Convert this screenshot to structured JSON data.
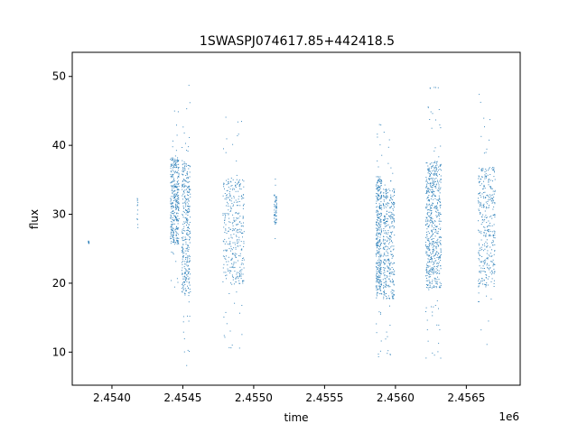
{
  "chart_data": {
    "type": "scatter",
    "title": "1SWASPJ074617.85+442418.5",
    "xlabel": "time",
    "ylabel": "flux",
    "x_offset_label": "1e6",
    "xlim": [
      2453720,
      2456880
    ],
    "ylim": [
      5.2,
      53.5
    ],
    "x_ticks": [
      {
        "value": 2454000,
        "label": "2.4540"
      },
      {
        "value": 2454500,
        "label": "2.4545"
      },
      {
        "value": 2455000,
        "label": "2.4550"
      },
      {
        "value": 2455500,
        "label": "2.4555"
      },
      {
        "value": 2456000,
        "label": "2.4560"
      },
      {
        "value": 2456500,
        "label": "2.4565"
      }
    ],
    "y_ticks": [
      {
        "value": 10,
        "label": "10"
      },
      {
        "value": 20,
        "label": "20"
      },
      {
        "value": 30,
        "label": "30"
      },
      {
        "value": 40,
        "label": "40"
      },
      {
        "value": 50,
        "label": "50"
      }
    ],
    "grid": false,
    "legend": "none",
    "marker_color": "#1f77b4",
    "series": [
      {
        "segments": [
          {
            "time_range": [
              2453830,
              2453835
            ],
            "flux_range": [
              25.5,
              26.5
            ],
            "density": "low"
          },
          {
            "time_range": [
              2454175,
              2454180
            ],
            "flux_range": [
              25.0,
              36.0
            ],
            "density": "low"
          },
          {
            "time_range": [
              2454410,
              2454470
            ],
            "flux_range": [
              18.0,
              46.0
            ],
            "density": "high"
          },
          {
            "time_range": [
              2454490,
              2454550
            ],
            "flux_range": [
              7.0,
              49.0
            ],
            "density": "high"
          },
          {
            "time_range": [
              2454780,
              2454930
            ],
            "flux_range": [
              10.5,
              44.5
            ],
            "density": "high"
          },
          {
            "time_range": [
              2455140,
              2455160
            ],
            "flux_range": [
              26.0,
              35.5
            ],
            "density": "medium"
          },
          {
            "time_range": [
              2455860,
              2455900
            ],
            "flux_range": [
              8.0,
              46.0
            ],
            "density": "high"
          },
          {
            "time_range": [
              2455910,
              2455990
            ],
            "flux_range": [
              8.0,
              43.5
            ],
            "density": "high"
          },
          {
            "time_range": [
              2456210,
              2456320
            ],
            "flux_range": [
              8.0,
              49.0
            ],
            "density": "very high"
          },
          {
            "time_range": [
              2456580,
              2456700
            ],
            "flux_range": [
              9.0,
              47.5
            ],
            "density": "high"
          }
        ]
      }
    ]
  }
}
